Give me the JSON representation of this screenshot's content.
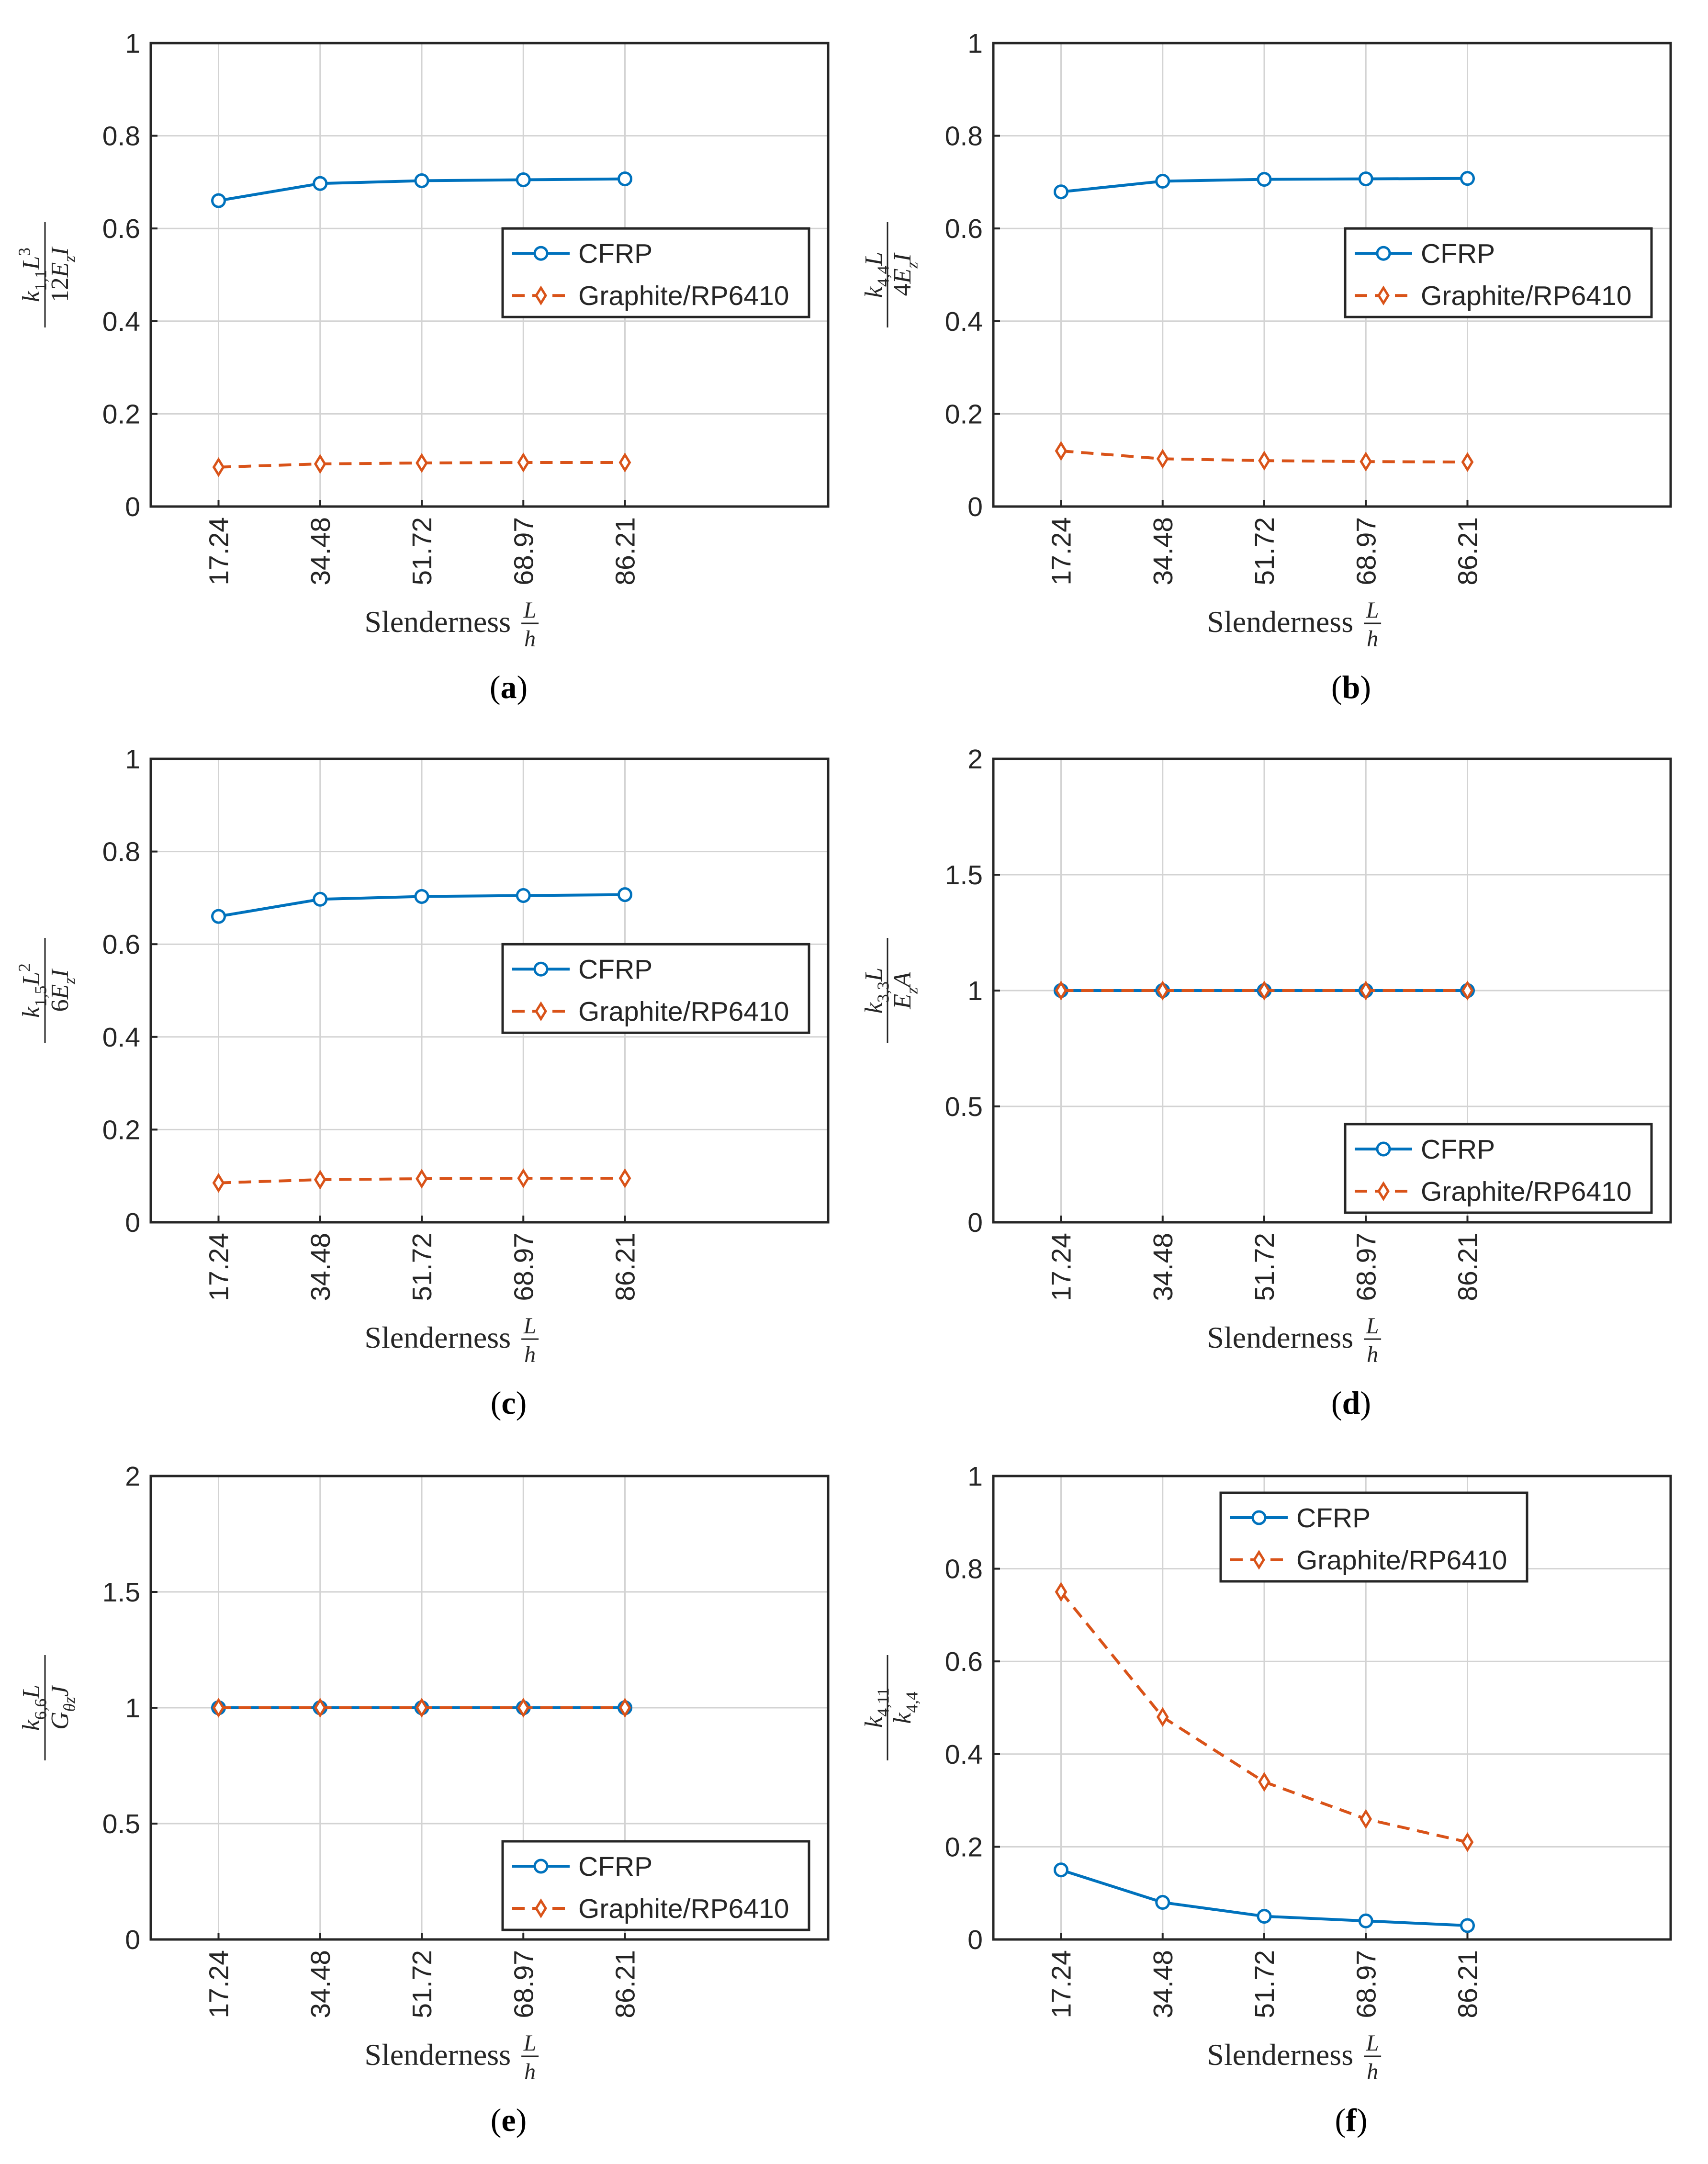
{
  "figure": {
    "background": "#ffffff"
  },
  "style": {
    "cfrp_color": "#0072BD",
    "graphite_color": "#D95319",
    "grid_color": "#d3d3d3",
    "axis_color": "#262626"
  },
  "chart_data": [
    {
      "id": "a",
      "panel_label": "(a)",
      "type": "line",
      "xlabel": "Slenderness",
      "xlabel_fraction": {
        "num": "L",
        "den": "h"
      },
      "ylabel": {
        "num": "k1,1L3",
        "den": "12EzI"
      },
      "categories": [
        "17.24",
        "34.48",
        "51.72",
        "68.97",
        "86.21"
      ],
      "ylim": [
        0,
        1
      ],
      "yticks": [
        0,
        0.2,
        0.4,
        0.6,
        0.8,
        1
      ],
      "ytick_labels": [
        "0",
        "0.2",
        "0.4",
        "0.6",
        "0.8",
        "1"
      ],
      "grid": true,
      "legend_position": "middle-right",
      "series": [
        {
          "name": "CFRP",
          "values": [
            0.66,
            0.697,
            0.703,
            0.705,
            0.707
          ]
        },
        {
          "name": "Graphite/RP6410",
          "values": [
            0.085,
            0.092,
            0.094,
            0.095,
            0.095
          ]
        }
      ]
    },
    {
      "id": "b",
      "panel_label": "(b)",
      "type": "line",
      "xlabel": "Slenderness",
      "xlabel_fraction": {
        "num": "L",
        "den": "h"
      },
      "ylabel": {
        "num": "k4,4L",
        "den": "4EzI"
      },
      "categories": [
        "17.24",
        "34.48",
        "51.72",
        "68.97",
        "86.21"
      ],
      "ylim": [
        0,
        1
      ],
      "yticks": [
        0,
        0.2,
        0.4,
        0.6,
        0.8,
        1
      ],
      "ytick_labels": [
        "0",
        "0.2",
        "0.4",
        "0.6",
        "0.8",
        "1"
      ],
      "grid": true,
      "legend_position": "middle-right",
      "series": [
        {
          "name": "CFRP",
          "values": [
            0.679,
            0.702,
            0.706,
            0.707,
            0.708
          ]
        },
        {
          "name": "Graphite/RP6410",
          "values": [
            0.12,
            0.103,
            0.099,
            0.097,
            0.096
          ]
        }
      ]
    },
    {
      "id": "c",
      "panel_label": "(c)",
      "type": "line",
      "xlabel": "Slenderness",
      "xlabel_fraction": {
        "num": "L",
        "den": "h"
      },
      "ylabel": {
        "num": "k1,5L2",
        "den": "6EzI"
      },
      "categories": [
        "17.24",
        "34.48",
        "51.72",
        "68.97",
        "86.21"
      ],
      "ylim": [
        0,
        1
      ],
      "yticks": [
        0,
        0.2,
        0.4,
        0.6,
        0.8,
        1
      ],
      "ytick_labels": [
        "0",
        "0.2",
        "0.4",
        "0.6",
        "0.8",
        "1"
      ],
      "grid": true,
      "legend_position": "middle-right",
      "series": [
        {
          "name": "CFRP",
          "values": [
            0.66,
            0.697,
            0.703,
            0.705,
            0.707
          ]
        },
        {
          "name": "Graphite/RP6410",
          "values": [
            0.085,
            0.092,
            0.094,
            0.095,
            0.095
          ]
        }
      ]
    },
    {
      "id": "d",
      "panel_label": "(d)",
      "type": "line",
      "xlabel": "Slenderness",
      "xlabel_fraction": {
        "num": "L",
        "den": "h"
      },
      "ylabel": {
        "num": "k3,3L",
        "den": "EzA"
      },
      "categories": [
        "17.24",
        "34.48",
        "51.72",
        "68.97",
        "86.21"
      ],
      "ylim": [
        0,
        2
      ],
      "yticks": [
        0,
        0.5,
        1,
        1.5,
        2
      ],
      "ytick_labels": [
        "0",
        "0.5",
        "1",
        "1.5",
        "2"
      ],
      "grid": true,
      "legend_position": "bottom-right",
      "series": [
        {
          "name": "CFRP",
          "values": [
            1,
            1,
            1,
            1,
            1
          ]
        },
        {
          "name": "Graphite/RP6410",
          "values": [
            1,
            1,
            1,
            1,
            1
          ]
        }
      ]
    },
    {
      "id": "e",
      "panel_label": "(e)",
      "type": "line",
      "xlabel": "Slenderness",
      "xlabel_fraction": {
        "num": "L",
        "den": "h"
      },
      "ylabel": {
        "num": "k6,6L",
        "den": "GθzJ"
      },
      "categories": [
        "17.24",
        "34.48",
        "51.72",
        "68.97",
        "86.21"
      ],
      "ylim": [
        0,
        2
      ],
      "yticks": [
        0,
        0.5,
        1,
        1.5,
        2
      ],
      "ytick_labels": [
        "0",
        "0.5",
        "1",
        "1.5",
        "2"
      ],
      "grid": true,
      "legend_position": "bottom-right",
      "series": [
        {
          "name": "CFRP",
          "values": [
            1,
            1,
            1,
            1,
            1
          ]
        },
        {
          "name": "Graphite/RP6410",
          "values": [
            1,
            1,
            1,
            1,
            1
          ]
        }
      ]
    },
    {
      "id": "f",
      "panel_label": "(f)",
      "type": "line",
      "xlabel": "Slenderness",
      "xlabel_fraction": {
        "num": "L",
        "den": "h"
      },
      "ylabel": {
        "num": "k4,11",
        "den": "k4,4"
      },
      "categories": [
        "17.24",
        "34.48",
        "51.72",
        "68.97",
        "86.21"
      ],
      "ylim": [
        0,
        1
      ],
      "yticks": [
        0,
        0.2,
        0.4,
        0.6,
        0.8,
        1
      ],
      "ytick_labels": [
        "0",
        "0.2",
        "0.4",
        "0.6",
        "0.8",
        "1"
      ],
      "grid": true,
      "legend_position": "top-right",
      "series": [
        {
          "name": "CFRP",
          "values": [
            0.15,
            0.08,
            0.05,
            0.04,
            0.03
          ]
        },
        {
          "name": "Graphite/RP6410",
          "values": [
            0.75,
            0.48,
            0.34,
            0.26,
            0.21
          ]
        }
      ]
    }
  ]
}
